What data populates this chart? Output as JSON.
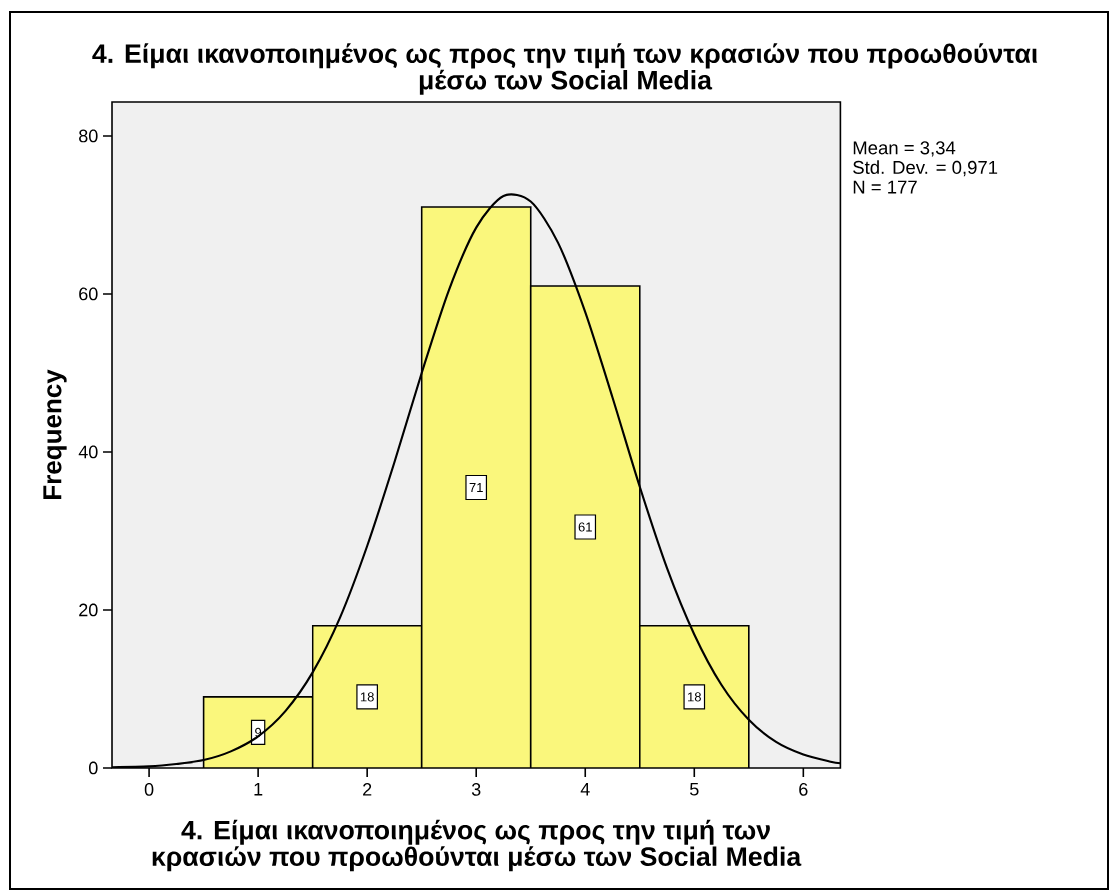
{
  "chart_data": {
    "type": "histogram",
    "title": "4. Είμαι ικανοποιημένος ως προς την τιμή των κρασιών που προωθούνται μέσω των Social Media",
    "xlabel": "4. Είμαι ικανοποιημένος ως προς την τιμή των κρασιών που προωθούνται μέσω των Social Media",
    "ylabel": "Frequency",
    "annotations": [
      "Mean = 3,34",
      "Std. Dev. = 0,971",
      "N = 177"
    ],
    "series": [
      {
        "bins": [
          0.5,
          1.5,
          2.5,
          3.5,
          4.5,
          5.5
        ],
        "values": [
          9,
          18,
          71,
          61,
          18
        ],
        "color": "#faf77c",
        "value_labels": [
          "9",
          "18",
          "71",
          "61",
          "18"
        ]
      },
      {
        "type": "line",
        "color": "#000000",
        "x": [
          -0.34,
          0,
          0.25,
          0.5,
          0.75,
          1,
          1.25,
          1.5,
          1.75,
          2,
          2.25,
          2.5,
          2.75,
          3,
          3.25,
          3.5,
          3.75,
          4,
          4.25,
          4.5,
          4.75,
          5,
          5.25,
          5.5,
          5.75,
          6,
          6.25,
          6.34
        ],
        "values": [
          0.1,
          0.2,
          0.5,
          1.0,
          2.1,
          4.0,
          7.2,
          12.1,
          19.0,
          28.1,
          38.7,
          50.0,
          60.5,
          68.4,
          72.4,
          71.7,
          66.5,
          57.7,
          46.9,
          35.6,
          25.3,
          16.9,
          10.5,
          6.1,
          3.3,
          1.7,
          0.8,
          0.6
        ]
      }
    ],
    "xlim": [
      -0.34,
      6.34
    ],
    "ylim": [
      0,
      84.3
    ],
    "xticks": [
      0,
      1,
      2,
      3,
      4,
      5,
      6
    ],
    "yticks": [
      0,
      20,
      40,
      60,
      80
    ]
  }
}
